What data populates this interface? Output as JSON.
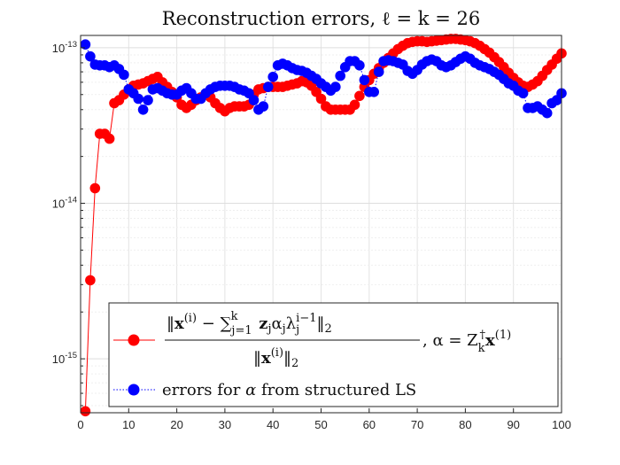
{
  "chart_data": {
    "type": "scatter",
    "title": "Reconstruction errors, ℓ = k = 26",
    "xlabel": "",
    "ylabel": "",
    "xlim": [
      0,
      100
    ],
    "ylim": [
      4.5e-16,
      1.2e-13
    ],
    "yscale": "log",
    "grid": true,
    "legend_position": "bottom-center",
    "x_ticks": [
      "0",
      "10",
      "20",
      "30",
      "40",
      "50",
      "60",
      "70",
      "80",
      "90",
      "100"
    ],
    "y_ticks": [
      {
        "value": 1e-15,
        "base": "10",
        "exp": "-15"
      },
      {
        "value": 1e-14,
        "base": "10",
        "exp": "-14"
      },
      {
        "value": 1e-13,
        "base": "10",
        "exp": "-13"
      }
    ],
    "series": [
      {
        "name": "‖x^(i) − Σ_{j=1}^{k} z_j α_j λ_j^{i−1}‖₂ / ‖x^(i)‖₂ , α = Z_k^† x^(1)",
        "color": "#ff0000",
        "marker": "circle",
        "line": "solid",
        "x": [
          1,
          2,
          3,
          4,
          5,
          6,
          7,
          8,
          9,
          10,
          11,
          12,
          13,
          14,
          15,
          16,
          17,
          18,
          19,
          20,
          21,
          22,
          23,
          24,
          25,
          26,
          27,
          28,
          29,
          30,
          31,
          32,
          33,
          34,
          35,
          36,
          37,
          38,
          39,
          40,
          41,
          42,
          43,
          44,
          45,
          46,
          47,
          48,
          49,
          50,
          51,
          52,
          53,
          54,
          55,
          56,
          57,
          58,
          59,
          60,
          61,
          62,
          63,
          64,
          65,
          66,
          67,
          68,
          69,
          70,
          71,
          72,
          73,
          74,
          75,
          76,
          77,
          78,
          79,
          80,
          81,
          82,
          83,
          84,
          85,
          86,
          87,
          88,
          89,
          90,
          91,
          92,
          93,
          94,
          95,
          96,
          97,
          98,
          99,
          100
        ],
        "y": [
          4.6e-16,
          3.2e-15,
          1.25e-14,
          2.8e-14,
          2.8e-14,
          2.6e-14,
          4.4e-14,
          4.6e-14,
          5e-14,
          5.4e-14,
          5.7e-14,
          5.8e-14,
          5.9e-14,
          6.1e-14,
          6.3e-14,
          6.5e-14,
          6e-14,
          5.6e-14,
          5.2e-14,
          4.8e-14,
          4.3e-14,
          4.1e-14,
          4.3e-14,
          4.6e-14,
          4.8e-14,
          5e-14,
          4.8e-14,
          4.4e-14,
          4.1e-14,
          3.9e-14,
          4.1e-14,
          4.2e-14,
          4.2e-14,
          4.2e-14,
          4.3e-14,
          5e-14,
          5.4e-14,
          5.5e-14,
          5.6e-14,
          5.6e-14,
          5.6e-14,
          5.6e-14,
          5.7e-14,
          5.8e-14,
          5.9e-14,
          6.1e-14,
          6e-14,
          5.7e-14,
          5.2e-14,
          4.7e-14,
          4.2e-14,
          4e-14,
          4e-14,
          4e-14,
          4e-14,
          4e-14,
          4.3e-14,
          4.9e-14,
          5.6e-14,
          6.2e-14,
          6.8e-14,
          7.4e-14,
          8e-14,
          8.6e-14,
          9.2e-14,
          9.8e-14,
          1.03e-13,
          1.07e-13,
          1.09e-13,
          1.1e-13,
          1.1e-13,
          1.09e-13,
          1.1e-13,
          1.11e-13,
          1.12e-13,
          1.13e-13,
          1.14e-13,
          1.14e-13,
          1.13e-13,
          1.12e-13,
          1.1e-13,
          1.07e-13,
          1.03e-13,
          9.8e-14,
          9.3e-14,
          8.7e-14,
          8.1e-14,
          7.5e-14,
          6.9e-14,
          6.4e-14,
          6e-14,
          5.7e-14,
          5.6e-14,
          5.8e-14,
          6.1e-14,
          6.6e-14,
          7.2e-14,
          7.8e-14,
          8.5e-14,
          9.2e-14
        ]
      },
      {
        "name": "errors for α from structured LS",
        "color": "#0000ff",
        "marker": "circle",
        "line": "dotted",
        "x": [
          1,
          2,
          3,
          4,
          5,
          6,
          7,
          8,
          9,
          10,
          11,
          12,
          13,
          14,
          15,
          16,
          17,
          18,
          19,
          20,
          21,
          22,
          23,
          24,
          25,
          26,
          27,
          28,
          29,
          30,
          31,
          32,
          33,
          34,
          35,
          36,
          37,
          38,
          39,
          40,
          41,
          42,
          43,
          44,
          45,
          46,
          47,
          48,
          49,
          50,
          51,
          52,
          53,
          54,
          55,
          56,
          57,
          58,
          59,
          60,
          61,
          62,
          63,
          64,
          65,
          66,
          67,
          68,
          69,
          70,
          71,
          72,
          73,
          74,
          75,
          76,
          77,
          78,
          79,
          80,
          81,
          82,
          83,
          84,
          85,
          86,
          87,
          88,
          89,
          90,
          91,
          92,
          93,
          94,
          95,
          96,
          97,
          98,
          99,
          100
        ],
        "y": [
          1.05e-13,
          8.8e-14,
          7.8e-14,
          7.7e-14,
          7.7e-14,
          7.5e-14,
          7.7e-14,
          7.3e-14,
          6.7e-14,
          5.4e-14,
          5.1e-14,
          4.7e-14,
          4e-14,
          4.6e-14,
          5.4e-14,
          5.5e-14,
          5.3e-14,
          5.1e-14,
          5e-14,
          5e-14,
          5.3e-14,
          5.5e-14,
          5.1e-14,
          4.7e-14,
          4.7e-14,
          5.1e-14,
          5.4e-14,
          5.6e-14,
          5.7e-14,
          5.7e-14,
          5.7e-14,
          5.6e-14,
          5.4e-14,
          5.3e-14,
          5.1e-14,
          4.6e-14,
          4e-14,
          4.2e-14,
          5.6e-14,
          6.5e-14,
          7.7e-14,
          7.9e-14,
          7.7e-14,
          7.4e-14,
          7.2e-14,
          7.1e-14,
          6.9e-14,
          6.6e-14,
          6.3e-14,
          5.9e-14,
          5.6e-14,
          5.3e-14,
          5.6e-14,
          6.6e-14,
          7.5e-14,
          8.2e-14,
          8.2e-14,
          7.7e-14,
          6.2e-14,
          5.2e-14,
          5.2e-14,
          7e-14,
          8.2e-14,
          8.3e-14,
          8.2e-14,
          8e-14,
          7.8e-14,
          7.1e-14,
          6.8e-14,
          7.2e-14,
          7.8e-14,
          8.2e-14,
          8.4e-14,
          8.2e-14,
          7.7e-14,
          7.5e-14,
          7.7e-14,
          8.1e-14,
          8.5e-14,
          8.8e-14,
          8.5e-14,
          8e-14,
          7.7e-14,
          7.5e-14,
          7.3e-14,
          7e-14,
          6.7e-14,
          6.3e-14,
          5.9e-14,
          5.7e-14,
          5.3e-14,
          5.1e-14,
          4.1e-14,
          4.1e-14,
          4.2e-14,
          4e-14,
          3.8e-14,
          4.4e-14,
          4.6e-14,
          5.1e-14
        ]
      }
    ]
  }
}
